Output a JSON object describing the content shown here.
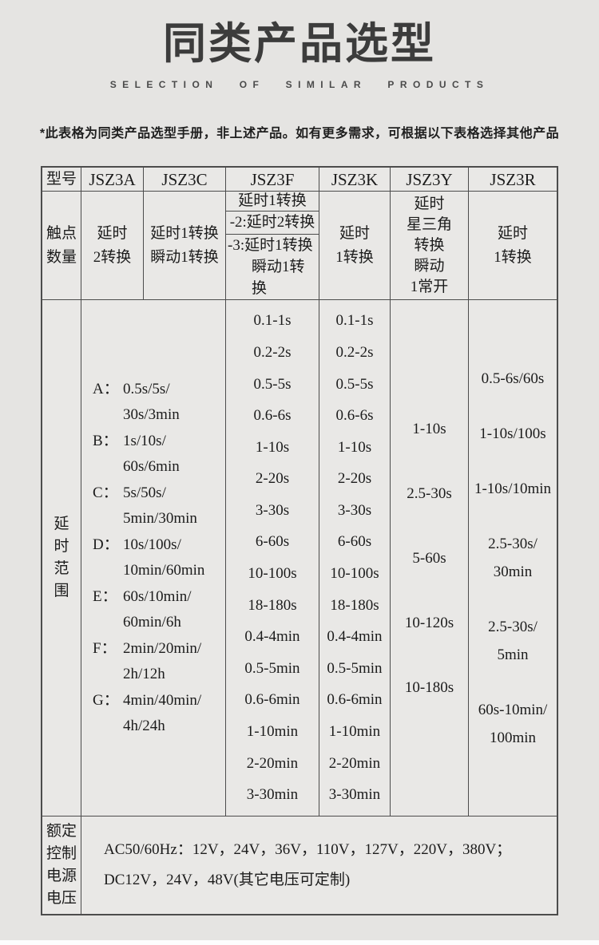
{
  "colors": {
    "background": "#e5e4e2",
    "table_border": "#4c4c4c",
    "text": "#1c1c1c",
    "title": "#3c3c3c"
  },
  "header": {
    "title": "同类产品选型",
    "subtitle": "SELECTION OF SIMILAR PRODUCTS",
    "note": "*此表格为同类产品选型手册，非上述产品。如有更多需求，可根据以下表格选择其他产品"
  },
  "table": {
    "model_label": "型号",
    "models": [
      "JSZ3A",
      "JSZ3C",
      "JSZ3F",
      "JSZ3K",
      "JSZ3Y",
      "JSZ3R"
    ],
    "contacts": {
      "label": "触点\n数量",
      "jsz3a": "延时\n2转换",
      "jsz3c": "延时1转换\n瞬动1转换",
      "jsz3f": {
        "sub1": "延时1转换",
        "sub2": "-2:延时2转换",
        "sub3_line1": "-3:延时1转换",
        "sub3_line2": "瞬动1转换"
      },
      "jsz3k": "延时\n1转换",
      "jsz3y": "延时\n星三角\n转换\n瞬动\n1常开",
      "jsz3r": "延时\n1转换"
    },
    "delay": {
      "label": "延\n时\n范\n围",
      "ag": [
        {
          "k": "A：",
          "v1": "0.5s/5s/",
          "v2": "30s/3min"
        },
        {
          "k": "B：",
          "v1": "1s/10s/",
          "v2": "60s/6min"
        },
        {
          "k": "C：",
          "v1": "5s/50s/",
          "v2": "5min/30min"
        },
        {
          "k": "D：",
          "v1": "10s/100s/",
          "v2": "10min/60min"
        },
        {
          "k": "E：",
          "v1": "60s/10min/",
          "v2": "60min/6h"
        },
        {
          "k": "F：",
          "v1": "2min/20min/",
          "v2": "2h/12h"
        },
        {
          "k": "G：",
          "v1": "4min/40min/",
          "v2": "4h/24h"
        }
      ],
      "jsz3f": [
        "0.1-1s",
        "0.2-2s",
        "0.5-5s",
        "0.6-6s",
        "1-10s",
        "2-20s",
        "3-30s",
        "6-60s",
        "10-100s",
        "18-180s",
        "0.4-4min",
        "0.5-5min",
        "0.6-6min",
        "1-10min",
        "2-20min",
        "3-30min"
      ],
      "jsz3k": [
        "0.1-1s",
        "0.2-2s",
        "0.5-5s",
        "0.6-6s",
        "1-10s",
        "2-20s",
        "3-30s",
        "6-60s",
        "10-100s",
        "18-180s",
        "0.4-4min",
        "0.5-5min",
        "0.6-6min",
        "1-10min",
        "2-20min",
        "3-30min"
      ],
      "jsz3y": [
        "1-10s",
        "2.5-30s",
        "5-60s",
        "10-120s",
        "10-180s"
      ],
      "jsz3r": [
        "0.5-6s/60s",
        "1-10s/100s",
        "1-10s/10min",
        [
          "2.5-30s/",
          "30min"
        ],
        [
          "2.5-30s/",
          "5min"
        ],
        [
          "60s-10min/",
          "100min"
        ]
      ]
    },
    "voltage": {
      "label": "额定\n控制\n电源\n电压",
      "text": "AC50/60Hz：12V，24V，36V，110V，127V，220V，380V；\nDC12V，24V，48V(其它电压可定制)"
    }
  }
}
